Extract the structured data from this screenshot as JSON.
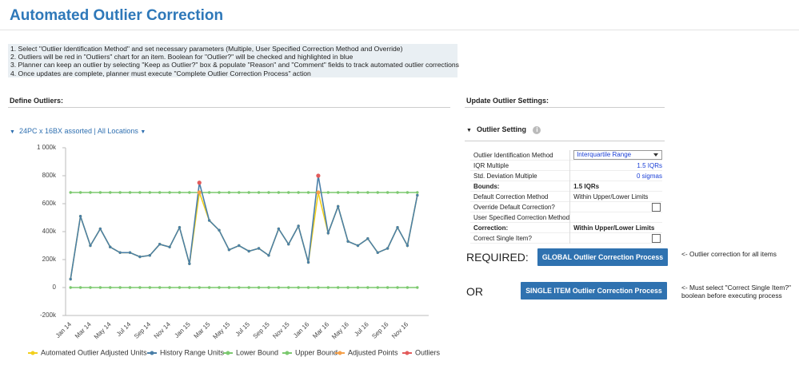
{
  "header": {
    "title": "Automated Outlier Correction"
  },
  "instructions": [
    "1. Select \"Outlier Identification Method\" and set necessary parameters (Multiple, User Specified Correction Method and Override)",
    "2. Outliers will be red in \"Outliers\" chart for an item. Boolean for \"Outlier?\" will be checked and highlighted in blue",
    "3. Planner can keep an outlier by selecting \"Keep as Outlier?\" box & populate \"Reason\" and \"Comment\" fields to track automated outlier corrections",
    "4. Once updates are complete, planner must execute \"Complete Outlier Correction Process\" action"
  ],
  "left_panel": {
    "title": "Define Outliers:",
    "selector": "24PC x 16BX assorted | All Locations"
  },
  "chart_data": {
    "type": "line",
    "categories": [
      "Jan 14",
      null,
      "Mar 14",
      null,
      "May 14",
      null,
      "Jul 14",
      null,
      "Sep 14",
      null,
      "Nov 14",
      null,
      "Jan 15",
      null,
      "Mar 15",
      null,
      "May 15",
      null,
      "Jul 15",
      null,
      "Sep 15",
      null,
      "Nov 15",
      null,
      "Jan 16",
      null,
      "Mar 16",
      null,
      "May 16",
      null,
      "Jul 16",
      null,
      "Sep 16",
      null,
      "Nov 16",
      null
    ],
    "series": [
      {
        "name": "Automated Outlier Adjusted Units",
        "color": "#f2cf1d",
        "values": [
          60000,
          510000,
          300000,
          420000,
          290000,
          250000,
          250000,
          220000,
          230000,
          310000,
          290000,
          430000,
          170000,
          680000,
          480000,
          410000,
          270000,
          300000,
          260000,
          280000,
          230000,
          420000,
          310000,
          440000,
          180000,
          680000,
          390000,
          580000,
          330000,
          300000,
          350000,
          250000,
          280000,
          430000,
          300000,
          660000
        ]
      },
      {
        "name": "History Range Units",
        "color": "#4a7fa8",
        "values": [
          60000,
          510000,
          300000,
          420000,
          290000,
          250000,
          250000,
          220000,
          230000,
          310000,
          290000,
          430000,
          170000,
          750000,
          480000,
          410000,
          270000,
          300000,
          260000,
          280000,
          230000,
          420000,
          310000,
          440000,
          180000,
          800000,
          390000,
          580000,
          330000,
          300000,
          350000,
          250000,
          280000,
          430000,
          300000,
          660000
        ]
      },
      {
        "name": "Lower Bound",
        "color": "#7cc96f",
        "values": [
          0,
          0,
          0,
          0,
          0,
          0,
          0,
          0,
          0,
          0,
          0,
          0,
          0,
          0,
          0,
          0,
          0,
          0,
          0,
          0,
          0,
          0,
          0,
          0,
          0,
          0,
          0,
          0,
          0,
          0,
          0,
          0,
          0,
          0,
          0,
          0
        ]
      },
      {
        "name": "Upper Bound",
        "color": "#7cc96f",
        "values": [
          680000,
          680000,
          680000,
          680000,
          680000,
          680000,
          680000,
          680000,
          680000,
          680000,
          680000,
          680000,
          680000,
          680000,
          680000,
          680000,
          680000,
          680000,
          680000,
          680000,
          680000,
          680000,
          680000,
          680000,
          680000,
          680000,
          680000,
          680000,
          680000,
          680000,
          680000,
          680000,
          680000,
          680000,
          680000,
          680000
        ]
      },
      {
        "name": "Adjusted Points",
        "color": "#f5a04a",
        "markers_only": true,
        "values": [
          null,
          null,
          null,
          null,
          null,
          null,
          null,
          null,
          null,
          null,
          null,
          null,
          null,
          680000,
          null,
          null,
          null,
          null,
          null,
          null,
          null,
          null,
          null,
          null,
          null,
          680000,
          null,
          null,
          null,
          null,
          null,
          null,
          null,
          null,
          null,
          null
        ]
      },
      {
        "name": "Outliers",
        "color": "#e35b5b",
        "markers_only": true,
        "values": [
          null,
          null,
          null,
          null,
          null,
          null,
          null,
          null,
          null,
          null,
          null,
          null,
          null,
          750000,
          null,
          null,
          null,
          null,
          null,
          null,
          null,
          null,
          null,
          null,
          null,
          800000,
          null,
          null,
          null,
          null,
          null,
          null,
          null,
          null,
          null,
          null
        ]
      }
    ],
    "ylim": [
      -200000,
      1000000
    ],
    "yticks": [
      {
        "value": -200000,
        "label": "-200k"
      },
      0,
      {
        "value": 200000,
        "label": "200k"
      },
      {
        "value": 400000,
        "label": "400k"
      },
      {
        "value": 600000,
        "label": "600k"
      },
      {
        "value": 800000,
        "label": "800k"
      },
      {
        "value": 1000000,
        "label": "1 000k"
      }
    ],
    "grid": false
  },
  "right_panel": {
    "title": "Update Outlier Settings:",
    "section": "Outlier Setting",
    "rows": [
      {
        "label": "Outlier Identification Method",
        "value": "Interquartile Range",
        "dropdown": true
      },
      {
        "label": "IQR Multiple",
        "value": "1.5 IQRs"
      },
      {
        "label": "Std. Deviation Multiple",
        "value": "0 sigmas"
      },
      {
        "label": "Bounds:",
        "value": "1.5 IQRs"
      },
      {
        "label": "Default Correction Method",
        "value": "Within Upper/Lower Limits"
      },
      {
        "label": "Override Default Correction?",
        "checkbox": false
      },
      {
        "label": "User Specified Correction Method"
      },
      {
        "label": "Correction:",
        "value": "Within Upper/Lower Limits"
      },
      {
        "label": "Correct Single Item?",
        "checkbox": false
      }
    ],
    "required_label": "REQUIRED:",
    "global_button": "GLOBAL Outlier Correction Process",
    "global_note": "<- Outlier correction for all items",
    "or_label": "OR",
    "single_button": "SINGLE ITEM Outlier Correction Process",
    "single_note": "<- Must select \"Correct Single Item?\" boolean before executing process"
  }
}
